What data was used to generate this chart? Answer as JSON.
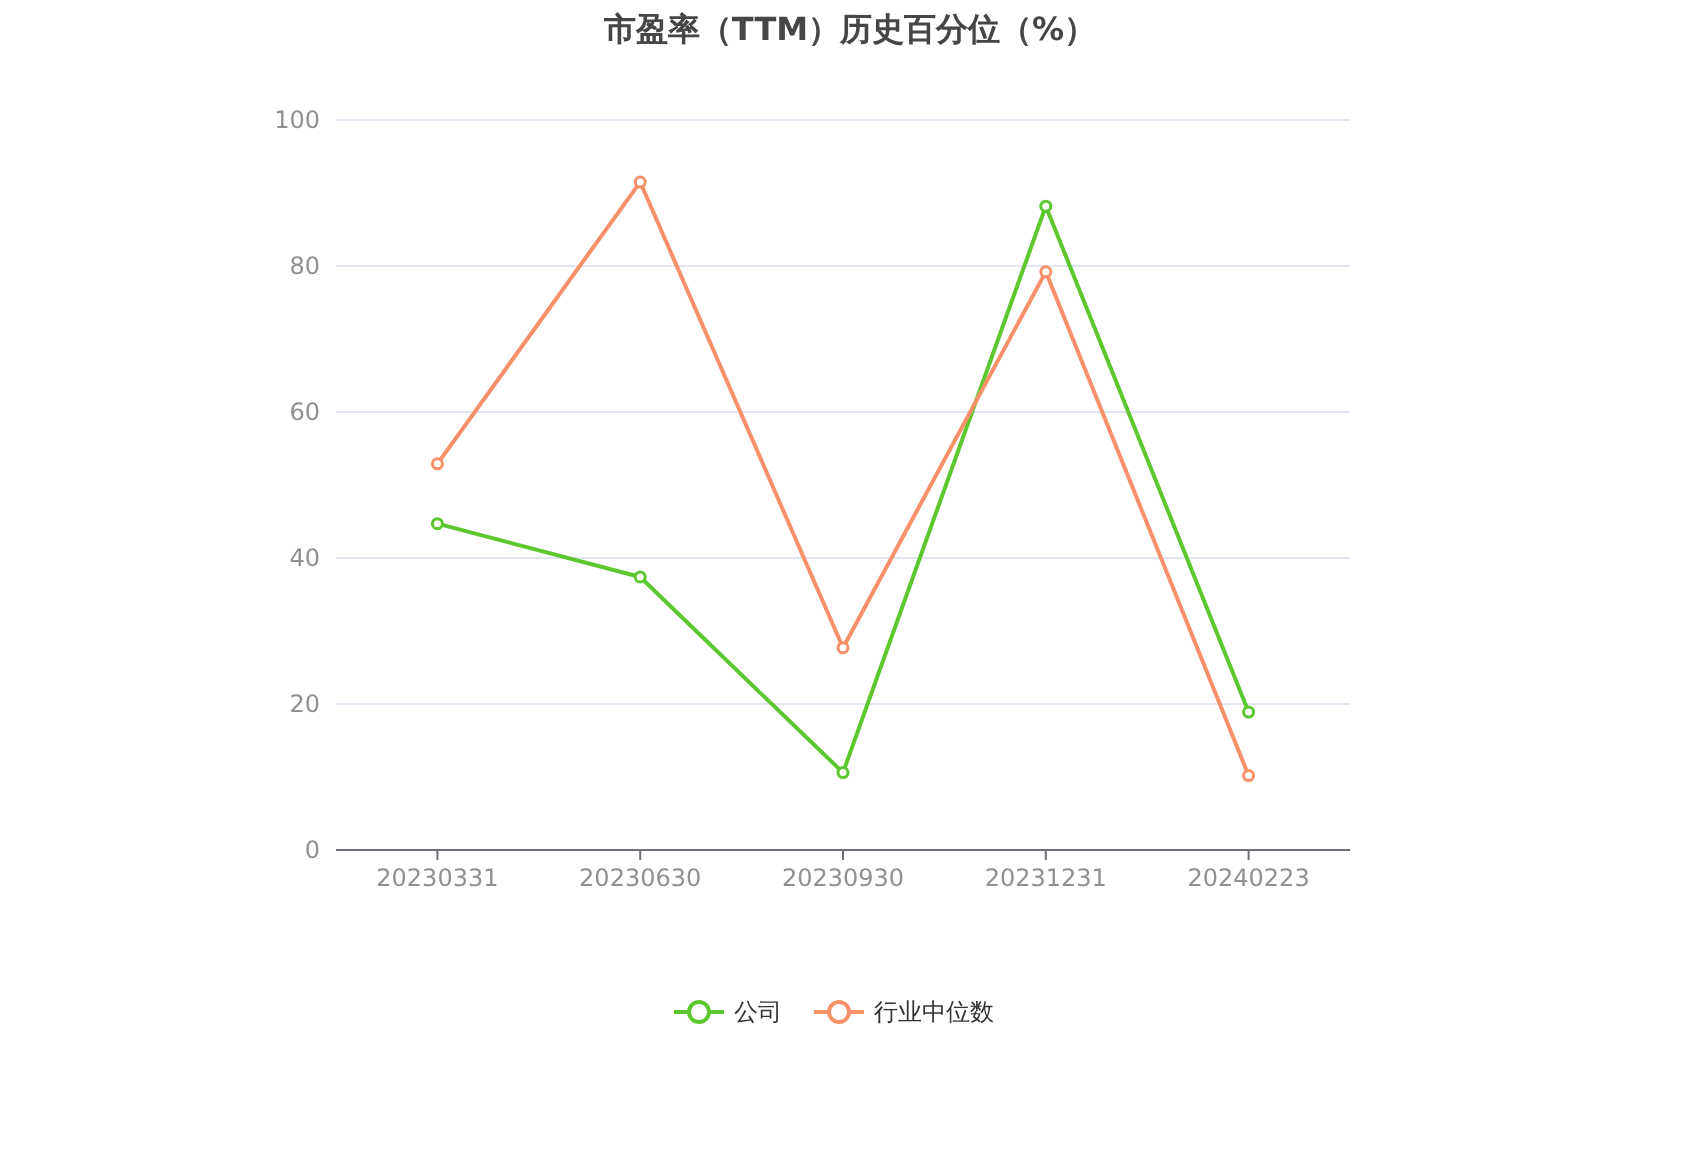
{
  "chart_data": {
    "type": "line",
    "title": "市盈率（TTM）历史百分位（%）",
    "categories": [
      "20230331",
      "20230630",
      "20230930",
      "20231231",
      "20240223"
    ],
    "series": [
      {
        "name": "公司",
        "color": "#5cc72e",
        "values": [
          44.7,
          37.4,
          10.6,
          88.2,
          18.9
        ]
      },
      {
        "name": "行业中位数",
        "color": "#f8906a",
        "values": [
          52.9,
          91.5,
          27.7,
          79.2,
          10.2
        ]
      }
    ],
    "ylim": [
      0,
      100
    ],
    "yticks": [
      0,
      20,
      40,
      60,
      80,
      100
    ],
    "grid": "y",
    "legend": "bottom",
    "marker": "circle",
    "line_style": "solid"
  }
}
